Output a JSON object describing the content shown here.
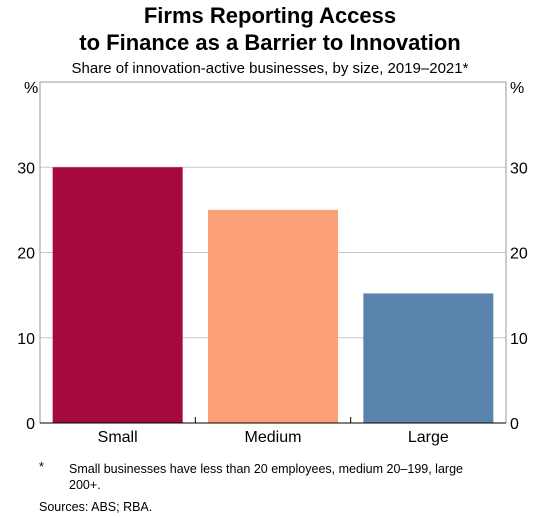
{
  "chart_data": {
    "type": "bar",
    "title_lines": [
      "Firms Reporting Access",
      "to Finance as a Barrier to Innovation"
    ],
    "subtitle": "Share of innovation-active businesses, by size, 2019–2021*",
    "y_unit_left": "%",
    "y_unit_right": "%",
    "ylim": [
      0,
      40
    ],
    "yticks": [
      "0",
      "10",
      "20",
      "30"
    ],
    "grid": true,
    "categories": [
      "Small",
      "Medium",
      "Large"
    ],
    "values": [
      30,
      25,
      15.2
    ],
    "colors": [
      "#a6093d",
      "#fca077",
      "#5a84ae"
    ]
  },
  "footnotes": {
    "marker": "*",
    "note": "Small businesses have less than 20 employees, medium 20–199, large 200+.",
    "sources": "Sources: ABS; RBA."
  }
}
